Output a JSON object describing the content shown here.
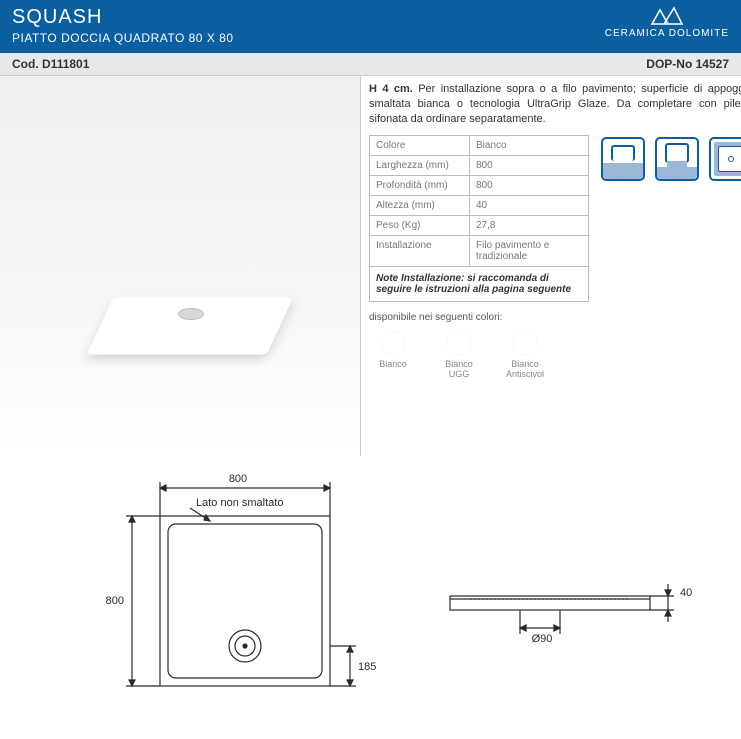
{
  "header": {
    "title": "SQUASH",
    "subtitle": "PIATTO DOCCIA QUADRATO 80 X 80",
    "brand": "CERAMICA DOLOMITE",
    "bg_color": "#0a5fa0"
  },
  "subheader": {
    "code_label": "Cod.",
    "code_value": "D111801",
    "dop_label": "DOP-No",
    "dop_value": "14527"
  },
  "description": {
    "lead": "H 4 cm.",
    "body": "Per installazione sopra o a filo pavimento; superficie di appoggio smaltata bianca o tecnologia UltraGrip Glaze. Da completare con piletta sifonata da ordinare separatamente."
  },
  "specs": [
    {
      "label": "Colore",
      "value": "Bianco"
    },
    {
      "label": "Larghezza (mm)",
      "value": "800"
    },
    {
      "label": "Profondità  (mm)",
      "value": "800"
    },
    {
      "label": "Altezza  (mm)",
      "value": "40"
    },
    {
      "label": "Peso (Kg)",
      "value": "27,8"
    },
    {
      "label": "Installazione",
      "value": "Filo pavimento e tradizionale"
    }
  ],
  "install_note": "Note Installazione: si raccomanda di seguire le istruzioni alla pagina seguente",
  "available_label": "disponibile nei seguenti colori:",
  "swatches": [
    {
      "name": "Bianco"
    },
    {
      "name": "Bianco UGG"
    },
    {
      "name": "Bianco Antiscivol"
    }
  ],
  "drawing": {
    "width_dim": "800",
    "height_dim": "800",
    "drain_offset": "185",
    "side_height": "40",
    "drain_dia": "Ø90",
    "unglazed_label": "Lato non smaltato",
    "line_color": "#2a2a2a",
    "stroke_width": 1.2
  },
  "icon_colors": {
    "stroke": "#0a5fa0",
    "fill": "#9db7d6"
  }
}
